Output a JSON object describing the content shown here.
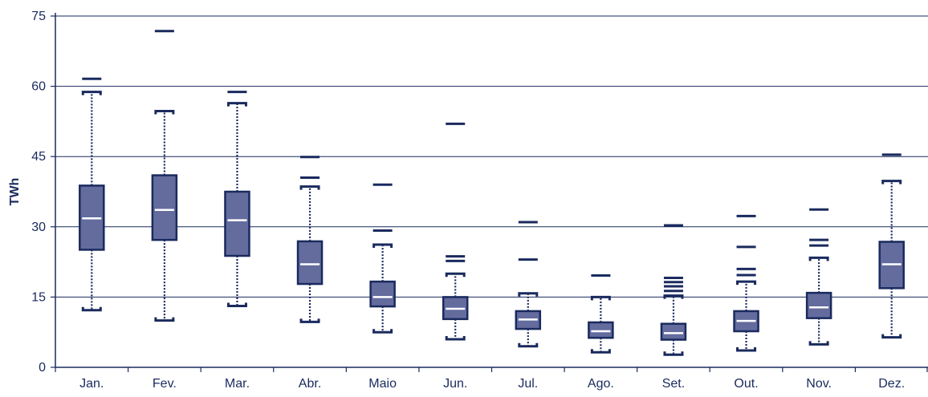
{
  "chart_data": {
    "type": "boxplot",
    "title": "",
    "xlabel": "",
    "ylabel": "TWh",
    "ylim": [
      0,
      75
    ],
    "yticks": [
      0,
      15,
      30,
      45,
      60,
      75
    ],
    "grid": true,
    "categories": [
      "Jan.",
      "Fev.",
      "Mar.",
      "Abr.",
      "Maio",
      "Jun.",
      "Jul.",
      "Ago.",
      "Set.",
      "Out.",
      "Nov.",
      "Dez."
    ],
    "boxes": [
      {
        "whisker_low": 12.2,
        "q1": 25.1,
        "median": 31.8,
        "q3": 38.8,
        "whisker_high": 58.8,
        "outliers": [
          61.6
        ]
      },
      {
        "whisker_low": 10.0,
        "q1": 27.2,
        "median": 33.6,
        "q3": 41.0,
        "whisker_high": 54.7,
        "outliers": [
          71.8
        ]
      },
      {
        "whisker_low": 13.1,
        "q1": 23.8,
        "median": 31.4,
        "q3": 37.5,
        "whisker_high": 56.4,
        "outliers": [
          58.8
        ]
      },
      {
        "whisker_low": 9.7,
        "q1": 17.8,
        "median": 22.0,
        "q3": 26.9,
        "whisker_high": 38.6,
        "outliers": [
          40.5,
          44.9
        ]
      },
      {
        "whisker_low": 7.5,
        "q1": 13.0,
        "median": 15.0,
        "q3": 18.3,
        "whisker_high": 26.2,
        "outliers": [
          29.2,
          39.0
        ]
      },
      {
        "whisker_low": 6.0,
        "q1": 10.3,
        "median": 12.5,
        "q3": 15.0,
        "whisker_high": 20.0,
        "outliers": [
          22.7,
          23.7,
          52.0
        ]
      },
      {
        "whisker_low": 4.5,
        "q1": 8.2,
        "median": 10.2,
        "q3": 12.0,
        "whisker_high": 15.8,
        "outliers": [
          23.0,
          31.0
        ]
      },
      {
        "whisker_low": 3.2,
        "q1": 6.3,
        "median": 7.7,
        "q3": 9.6,
        "whisker_high": 15.0,
        "outliers": [
          19.6
        ]
      },
      {
        "whisker_low": 2.7,
        "q1": 5.9,
        "median": 7.3,
        "q3": 9.3,
        "whisker_high": 15.3,
        "outliers": [
          16.3,
          17.3,
          18.2,
          19.1,
          30.3
        ]
      },
      {
        "whisker_low": 3.6,
        "q1": 7.7,
        "median": 9.9,
        "q3": 12.0,
        "whisker_high": 18.3,
        "outliers": [
          19.7,
          21.0,
          25.7,
          32.3
        ]
      },
      {
        "whisker_low": 4.9,
        "q1": 10.5,
        "median": 12.8,
        "q3": 15.9,
        "whisker_high": 23.4,
        "outliers": [
          26.0,
          27.2,
          33.7
        ]
      },
      {
        "whisker_low": 6.4,
        "q1": 16.9,
        "median": 22.0,
        "q3": 26.8,
        "whisker_high": 39.8,
        "outliers": [
          45.4
        ]
      }
    ],
    "colors": {
      "box_fill": "#646c9e",
      "box_stroke": "#1a2a5e",
      "median": "#ffffff",
      "whisker": "#1a2a5e",
      "outlier": "#1a2a5e",
      "grid": "#1a2a5e",
      "axis": "#1a2a5e"
    }
  }
}
